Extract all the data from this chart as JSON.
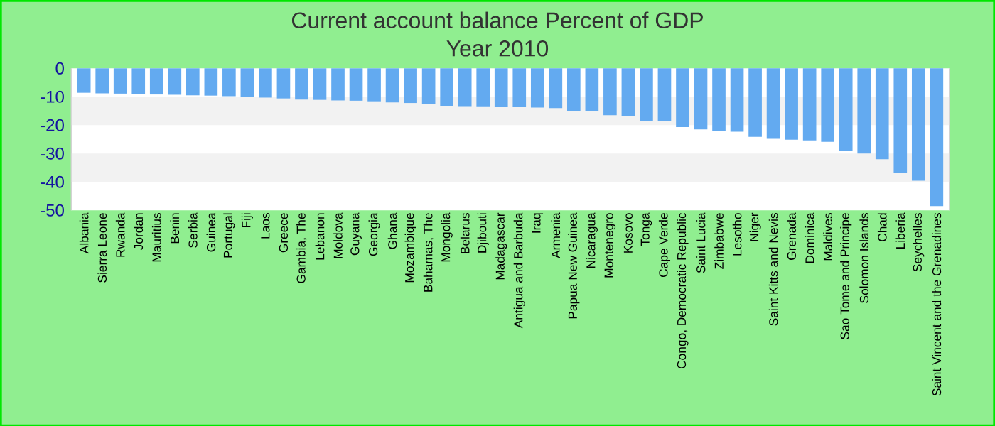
{
  "chart_data": {
    "type": "bar",
    "title": "Current account balance  Percent of GDP",
    "subtitle": "Year 2010",
    "categories": [
      "Albania",
      "Sierra Leone",
      "Rwanda",
      "Jordan",
      "Mauritius",
      "Benin",
      "Serbia",
      "Guinea",
      "Portugal",
      "Fiji",
      "Laos",
      "Greece",
      "Gambia, The",
      "Lebanon",
      "Moldova",
      "Guyana",
      "Georgia",
      "Ghana",
      "Mozambique",
      "Bahamas, The",
      "Mongolia",
      "Belarus",
      "Djibouti",
      "Madagascar",
      "Antigua and Barbuda",
      "Iraq",
      "Armenia",
      "Papua New Guinea",
      "Nicaragua",
      "Montenegro",
      "Kosovo",
      "Tonga",
      "Cape Verde",
      "Congo, Democratic Republic",
      "Saint Lucia",
      "Zimbabwe",
      "Lesotho",
      "Niger",
      "Saint Kitts and Nevis",
      "Grenada",
      "Dominica",
      "Maldives",
      "Sao Tome and Principe",
      "Solomon Islands",
      "Chad",
      "Liberia",
      "Seychelles",
      "Saint Vincent and the Grenadines"
    ],
    "values": [
      -8.6,
      -8.8,
      -8.9,
      -9.0,
      -9.2,
      -9.3,
      -9.5,
      -9.6,
      -9.8,
      -10.0,
      -10.3,
      -10.6,
      -11.0,
      -11.1,
      -11.3,
      -11.4,
      -11.6,
      -12.0,
      -12.2,
      -12.5,
      -13.2,
      -13.3,
      -13.4,
      -13.5,
      -13.6,
      -13.8,
      -14.0,
      -15.0,
      -15.2,
      -16.5,
      -16.9,
      -18.6,
      -18.7,
      -20.7,
      -21.5,
      -22.1,
      -22.3,
      -24.1,
      -24.8,
      -25.1,
      -25.4,
      -25.9,
      -29.1,
      -30.0,
      -32.0,
      -36.7,
      -39.6,
      -48.5
    ],
    "color": "#63aaf0",
    "ylim": [
      -50,
      0
    ],
    "yticks": [
      0,
      -10,
      -20,
      -30,
      -40,
      -50
    ],
    "bands": [
      {
        "axis": "y",
        "from": -10,
        "to": -20,
        "color": "#f2f2f2"
      },
      {
        "axis": "y",
        "from": -30,
        "to": -40,
        "color": "#f2f2f2"
      }
    ]
  }
}
